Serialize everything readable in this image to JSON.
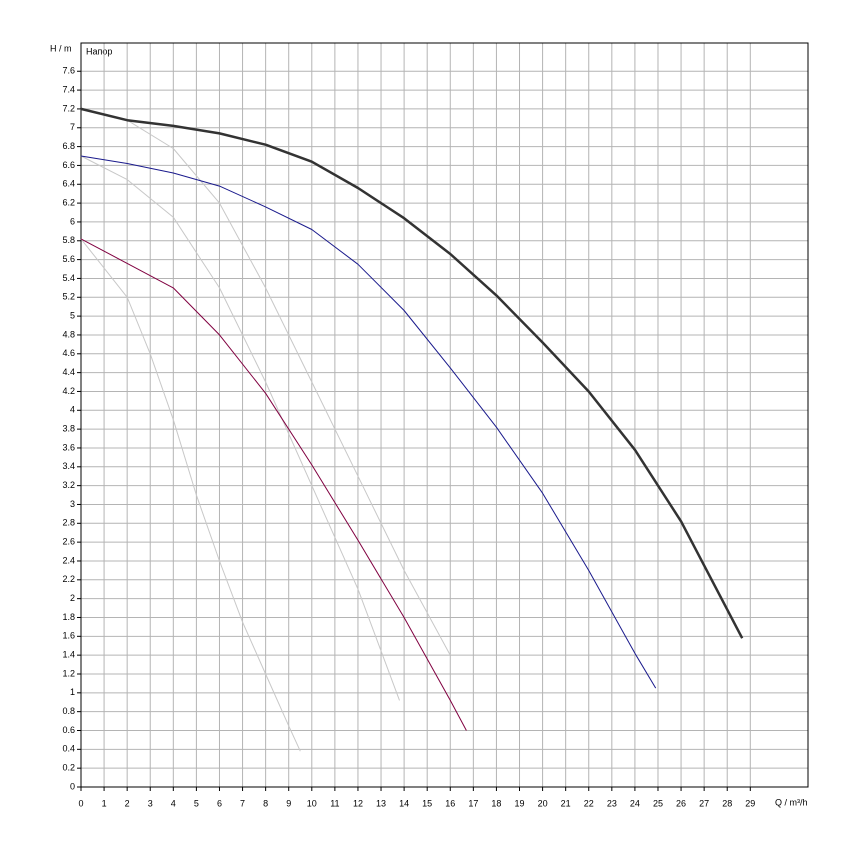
{
  "chart_data": {
    "type": "line",
    "annotation": "Напор",
    "y_label": "H / m",
    "x_label": "Q / m³/h",
    "xlim": [
      0,
      31.5
    ],
    "ylim": [
      0,
      7.9
    ],
    "xticks": [
      0,
      1,
      2,
      3,
      4,
      5,
      6,
      7,
      8,
      9,
      10,
      11,
      12,
      13,
      14,
      15,
      16,
      17,
      18,
      19,
      20,
      21,
      22,
      23,
      24,
      25,
      26,
      27,
      28,
      29
    ],
    "yticks": [
      0,
      0.2,
      0.4,
      0.6,
      0.8,
      1,
      1.2,
      1.4,
      1.6,
      1.8,
      2,
      2.2,
      2.4,
      2.6,
      2.8,
      3,
      3.2,
      3.4,
      3.6,
      3.8,
      4,
      4.2,
      4.4,
      4.6,
      4.8,
      5,
      5.2,
      5.4,
      5.6,
      5.8,
      6,
      6.2,
      6.4,
      6.6,
      6.8,
      7,
      7.2,
      7.4,
      7.6
    ],
    "grid": true,
    "series": [
      {
        "color": "#c8c8c8",
        "width": 1,
        "x": [
          0,
          2,
          4,
          6,
          8,
          10,
          12,
          14,
          16
        ],
        "values": [
          7.2,
          7.08,
          6.78,
          6.2,
          5.3,
          4.3,
          3.3,
          2.3,
          1.4
        ]
      },
      {
        "color": "#c8c8c8",
        "width": 1,
        "x": [
          0,
          2,
          4,
          6,
          8,
          10,
          12,
          13.8
        ],
        "values": [
          6.7,
          6.45,
          6.05,
          5.3,
          4.3,
          3.2,
          2.1,
          0.92
        ]
      },
      {
        "color": "#c8c8c8",
        "width": 1,
        "x": [
          0,
          2,
          3,
          4,
          5,
          6,
          7,
          8,
          9,
          9.5
        ],
        "values": [
          5.82,
          5.2,
          4.6,
          3.9,
          3.1,
          2.4,
          1.75,
          1.2,
          0.65,
          0.38
        ]
      },
      {
        "color": "#800040",
        "width": 1,
        "x": [
          0,
          2,
          4,
          6,
          8,
          10,
          12,
          14,
          16,
          16.7
        ],
        "values": [
          5.82,
          5.56,
          5.3,
          4.8,
          4.18,
          3.42,
          2.62,
          1.8,
          0.92,
          0.6
        ]
      },
      {
        "color": "#1a1a8c",
        "width": 1,
        "x": [
          0,
          2,
          4,
          6,
          8,
          10,
          12,
          14,
          16,
          18,
          20,
          22,
          24,
          24.9
        ],
        "values": [
          6.7,
          6.62,
          6.52,
          6.38,
          6.16,
          5.92,
          5.55,
          5.06,
          4.45,
          3.82,
          3.12,
          2.3,
          1.42,
          1.05
        ]
      },
      {
        "color": "#333333",
        "width": 2.5,
        "x": [
          0,
          2,
          4,
          6,
          8,
          10,
          12,
          14,
          16,
          18,
          20,
          22,
          24,
          26,
          28.65
        ],
        "values": [
          7.2,
          7.08,
          7.02,
          6.94,
          6.82,
          6.64,
          6.36,
          6.04,
          5.66,
          5.22,
          4.72,
          4.2,
          3.58,
          2.82,
          1.58
        ]
      }
    ]
  }
}
